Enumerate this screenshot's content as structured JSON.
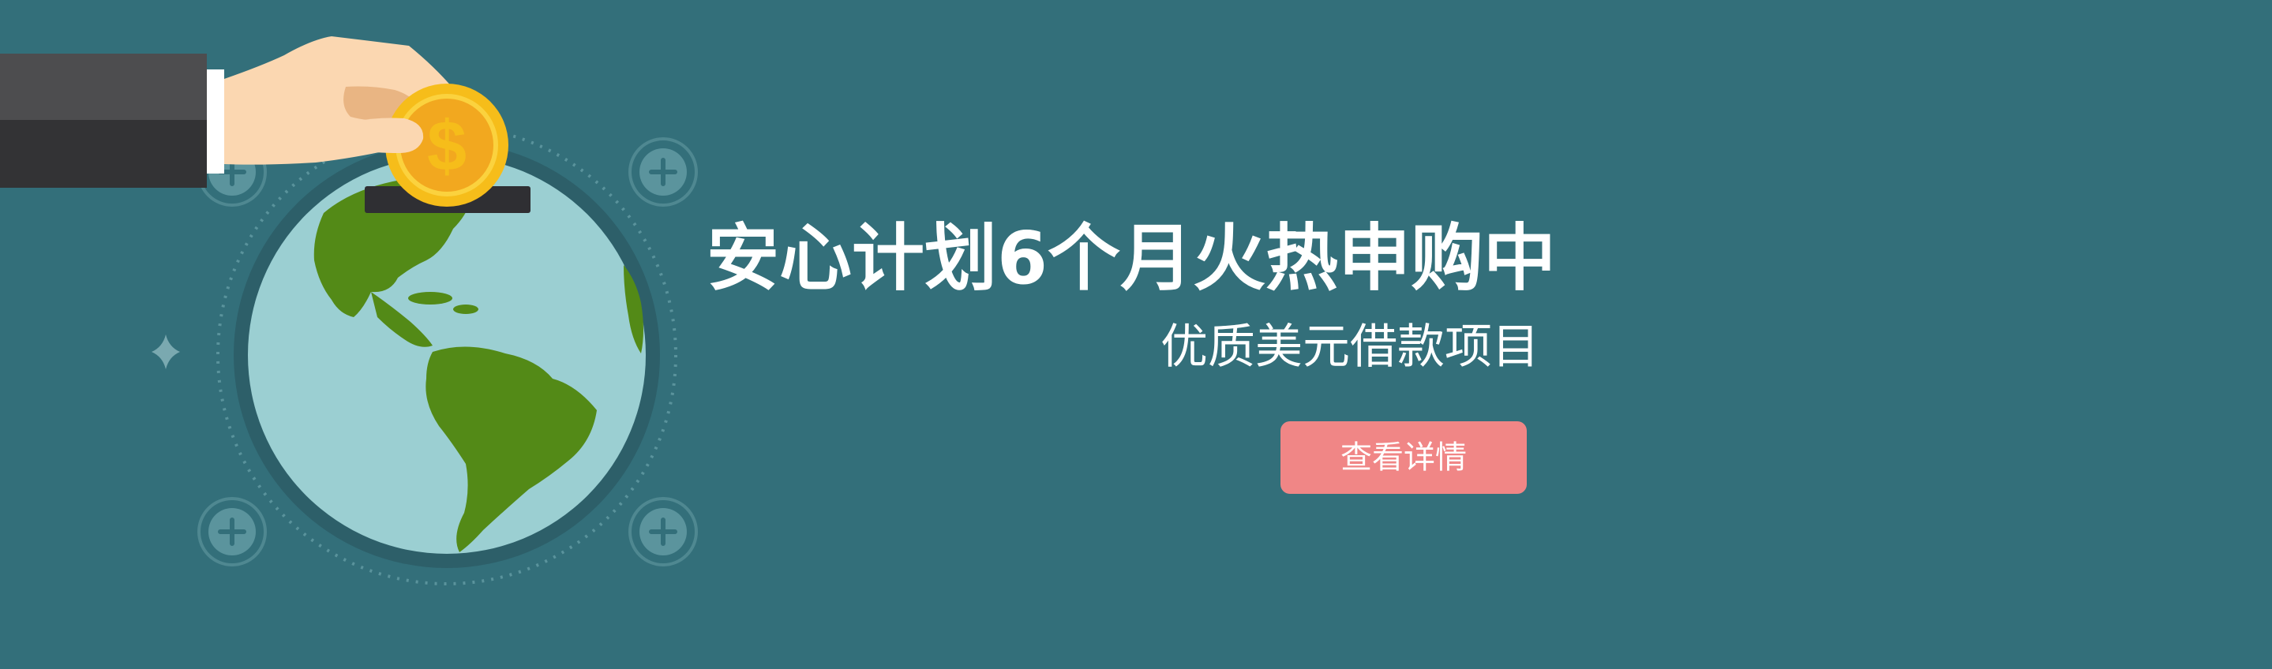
{
  "banner": {
    "headline": "安心计划6个月火热申购中",
    "subheadline": "优质美元借款项目",
    "cta_label": "查看详情"
  },
  "colors": {
    "background": "#336f7a",
    "cta": "#f08686",
    "ocean": "#9bcfd2",
    "land": "#538a17",
    "coin": "#f6bd1a"
  },
  "icons": [
    "hand-icon",
    "coin-icon",
    "globe-icon",
    "plus-icon",
    "sparkle-icon"
  ]
}
